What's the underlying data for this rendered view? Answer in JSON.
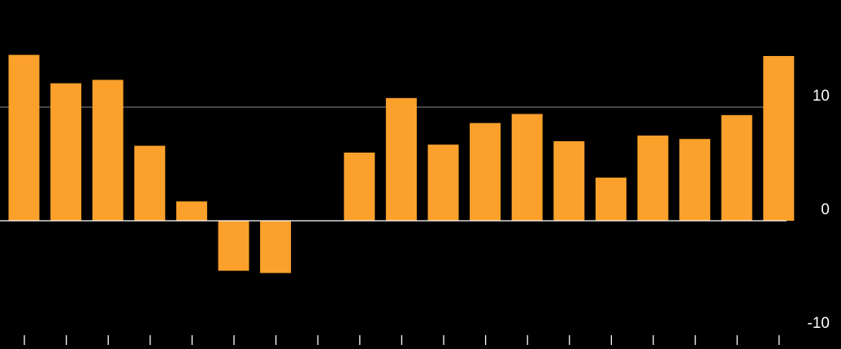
{
  "chart_data": {
    "type": "bar",
    "title": "",
    "xlabel": "",
    "ylabel": "",
    "ylim": [
      -10,
      15
    ],
    "yticks": [
      -10,
      0,
      10
    ],
    "ytick_labels": [
      "-10",
      "0",
      "10"
    ],
    "y_axis_position": "right",
    "grid": true,
    "legend": "none",
    "categories": [
      "",
      "",
      "",
      "",
      "",
      "",
      "",
      "",
      "",
      "",
      "",
      "",
      "",
      "",
      "",
      "",
      "",
      "",
      ""
    ],
    "values": [
      14.6,
      12.1,
      12.4,
      6.6,
      1.7,
      -4.4,
      -4.6,
      0,
      6.0,
      10.8,
      6.7,
      8.6,
      9.4,
      7.0,
      3.8,
      7.5,
      7.2,
      9.3,
      14.5
    ]
  },
  "colors": {
    "background": "#000000",
    "bar": "#FBA12B",
    "grid": "#8C8C8C",
    "zero_line": "#FFFFFF",
    "tick_label": "#FFFFFF",
    "axis_tick": "#FFFFFF"
  }
}
